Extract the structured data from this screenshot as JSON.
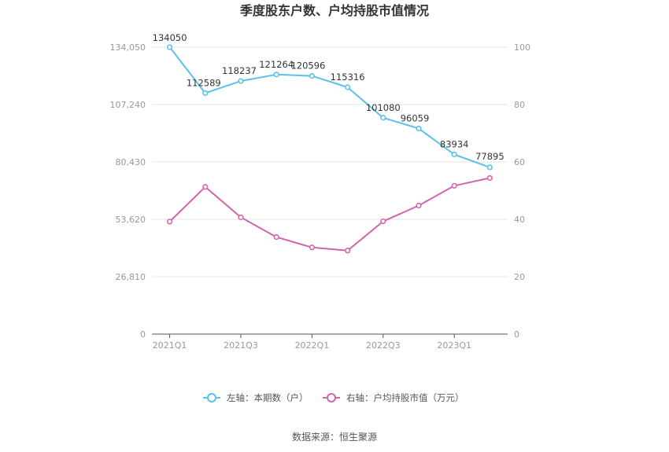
{
  "chart_data": {
    "type": "line",
    "title": "季度股东户数、户均持股市值情况",
    "x": [
      "2021Q1",
      "2021Q2",
      "2021Q3",
      "2021Q4",
      "2022Q1",
      "2022Q2",
      "2022Q3",
      "2022Q4",
      "2023Q1",
      "2023Q2"
    ],
    "x_tick_labels": [
      "2021Q1",
      "2021Q3",
      "2022Q1",
      "2022Q3",
      "2023Q1"
    ],
    "left_axis": {
      "ylim": [
        0,
        134050
      ],
      "ticks": [
        "0",
        "26,810",
        "53,620",
        "80,430",
        "107,240",
        "134,050"
      ]
    },
    "right_axis": {
      "ylim": [
        0,
        100
      ],
      "ticks": [
        "0",
        "20",
        "40",
        "60",
        "80",
        "100"
      ]
    },
    "series": [
      {
        "name": "左轴：本期数（户）",
        "axis": "left",
        "color": "#5bc0ea",
        "values": [
          134050,
          112589,
          118237,
          121264,
          120596,
          115316,
          101080,
          96059,
          83934,
          77895
        ],
        "labels": [
          "134050",
          "112589",
          "118237",
          "121264",
          "120596",
          "115316",
          "101080",
          "96059",
          "83934",
          "77895"
        ]
      },
      {
        "name": "右轴：户均持股市值（万元）",
        "axis": "right",
        "color": "#d264ae",
        "values": [
          39.2,
          51.3,
          40.7,
          33.8,
          30.2,
          29.1,
          39.3,
          44.8,
          51.7,
          54.4
        ]
      }
    ],
    "grid": true,
    "legend": "bottom-center",
    "source": "数据来源：恒生聚源"
  }
}
